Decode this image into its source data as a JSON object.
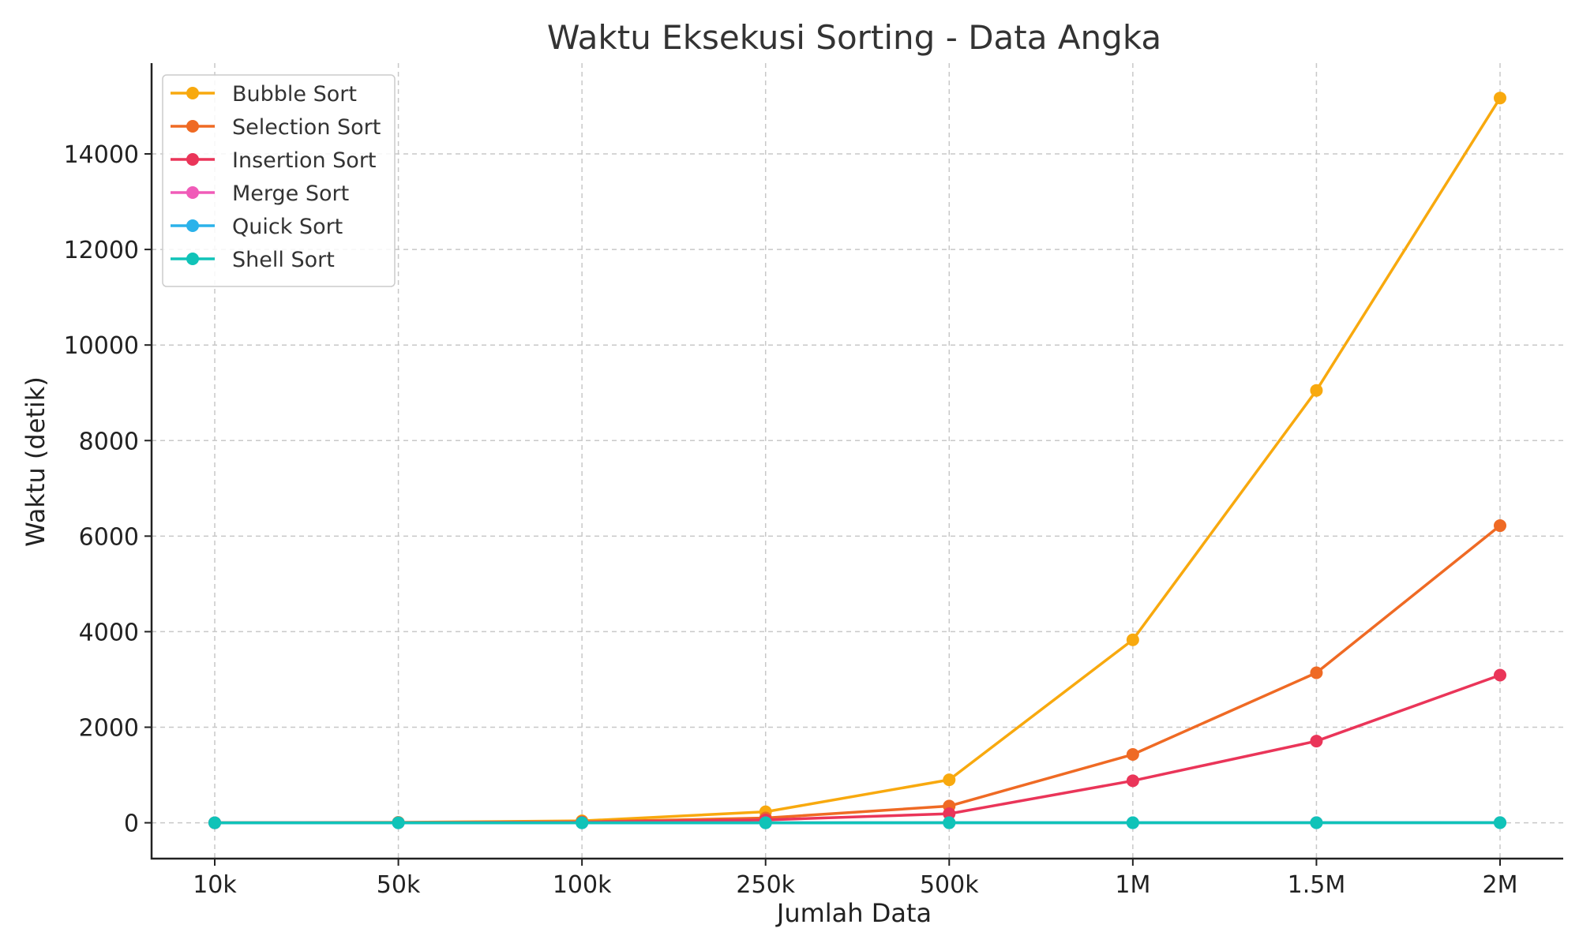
{
  "chart_data": {
    "type": "line",
    "title": "Waktu Eksekusi Sorting - Data Angka",
    "xlabel": "Jumlah Data",
    "ylabel": "Waktu (detik)",
    "categories": [
      "10k",
      "50k",
      "100k",
      "250k",
      "500k",
      "1M",
      "1.5M",
      "2M"
    ],
    "yticks": [
      0,
      2000,
      4000,
      6000,
      8000,
      10000,
      12000,
      14000
    ],
    "ylim": [
      -750,
      15900
    ],
    "grid": true,
    "legend_position": "top-left",
    "series": [
      {
        "name": "Bubble Sort",
        "color": "#F8A90E",
        "values": [
          1,
          10,
          40,
          230,
          900,
          3830,
          9050,
          15170
        ]
      },
      {
        "name": "Selection Sort",
        "color": "#EF6A24",
        "values": [
          0.5,
          5,
          20,
          100,
          350,
          1430,
          3140,
          6220
        ]
      },
      {
        "name": "Insertion Sort",
        "color": "#EA3559",
        "values": [
          0.3,
          3,
          10,
          60,
          190,
          880,
          1710,
          3090
        ]
      },
      {
        "name": "Merge Sort",
        "color": "#F05BB8",
        "values": [
          0.1,
          0.2,
          0.3,
          0.5,
          1,
          2,
          3,
          4
        ]
      },
      {
        "name": "Quick Sort",
        "color": "#2BB2EA",
        "values": [
          0.05,
          0.1,
          0.2,
          0.3,
          0.6,
          1,
          1.5,
          2
        ]
      },
      {
        "name": "Shell Sort",
        "color": "#10C3B8",
        "values": [
          0.05,
          0.1,
          0.2,
          0.4,
          0.8,
          1.5,
          2,
          3
        ]
      }
    ]
  }
}
